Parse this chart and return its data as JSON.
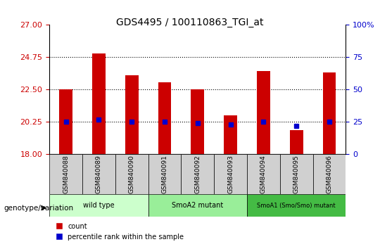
{
  "title": "GDS4495 / 100110863_TGI_at",
  "samples": [
    "GSM840088",
    "GSM840089",
    "GSM840090",
    "GSM840091",
    "GSM840092",
    "GSM840093",
    "GSM840094",
    "GSM840095",
    "GSM840096"
  ],
  "count_values": [
    22.5,
    25.0,
    23.5,
    23.0,
    22.5,
    20.7,
    23.8,
    19.7,
    23.7
  ],
  "percentile_values": [
    25,
    27,
    25,
    25,
    24,
    23,
    25,
    22,
    25
  ],
  "ylim_left": [
    18,
    27
  ],
  "ylim_right": [
    0,
    100
  ],
  "yticks_left": [
    18,
    20.25,
    22.5,
    24.75,
    27
  ],
  "yticks_right": [
    0,
    25,
    50,
    75,
    100
  ],
  "bar_color": "#cc0000",
  "dot_color": "#0000cc",
  "bar_width": 0.4,
  "groups": [
    {
      "label": "wild type",
      "samples": [
        "GSM840088",
        "GSM840089",
        "GSM840090"
      ],
      "color": "#ccffcc"
    },
    {
      "label": "SmoA2 mutant",
      "samples": [
        "GSM840091",
        "GSM840092",
        "GSM840093"
      ],
      "color": "#99ee99"
    },
    {
      "label": "SmoA1 (Smo/Smo) mutant",
      "samples": [
        "GSM840094",
        "GSM840095",
        "GSM840096"
      ],
      "color": "#44bb44"
    }
  ],
  "legend_count_label": "count",
  "legend_percentile_label": "percentile rank within the sample",
  "genotype_label": "genotype/variation",
  "grid_yticks": [
    20.25,
    22.5,
    24.75
  ],
  "tick_color_left": "#cc0000",
  "tick_color_right": "#0000cc",
  "base_value": 18
}
